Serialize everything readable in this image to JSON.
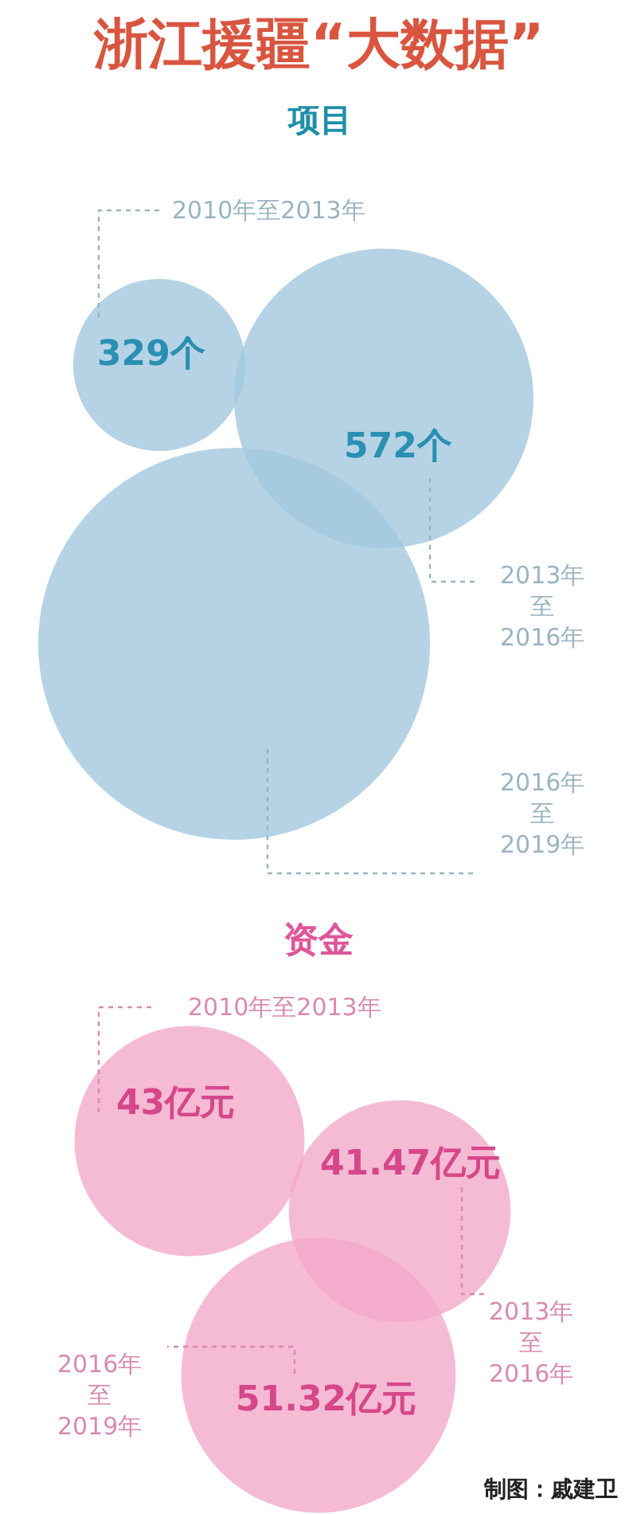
{
  "chart_data": [
    {
      "type": "other",
      "title": "浙江援疆“大数据”",
      "subtitle": "项目",
      "categories": [
        "2010年至2013年",
        "2013年至2016年",
        "2016年至2019年"
      ],
      "values": [
        329,
        572,
        null
      ],
      "value_labels": [
        "329个",
        "572个",
        null
      ],
      "color": "#a3c8de"
    },
    {
      "type": "other",
      "title": "资金",
      "categories": [
        "2010年至2013年",
        "2013年至2016年",
        "2016年至2019年"
      ],
      "values": [
        43,
        41.47,
        51.32
      ],
      "value_labels": [
        "43亿元",
        "41.47亿元",
        "51.32亿元"
      ],
      "color": "#f2a9c9",
      "annotations": [
        "制图：戚建卫"
      ]
    }
  ]
}
